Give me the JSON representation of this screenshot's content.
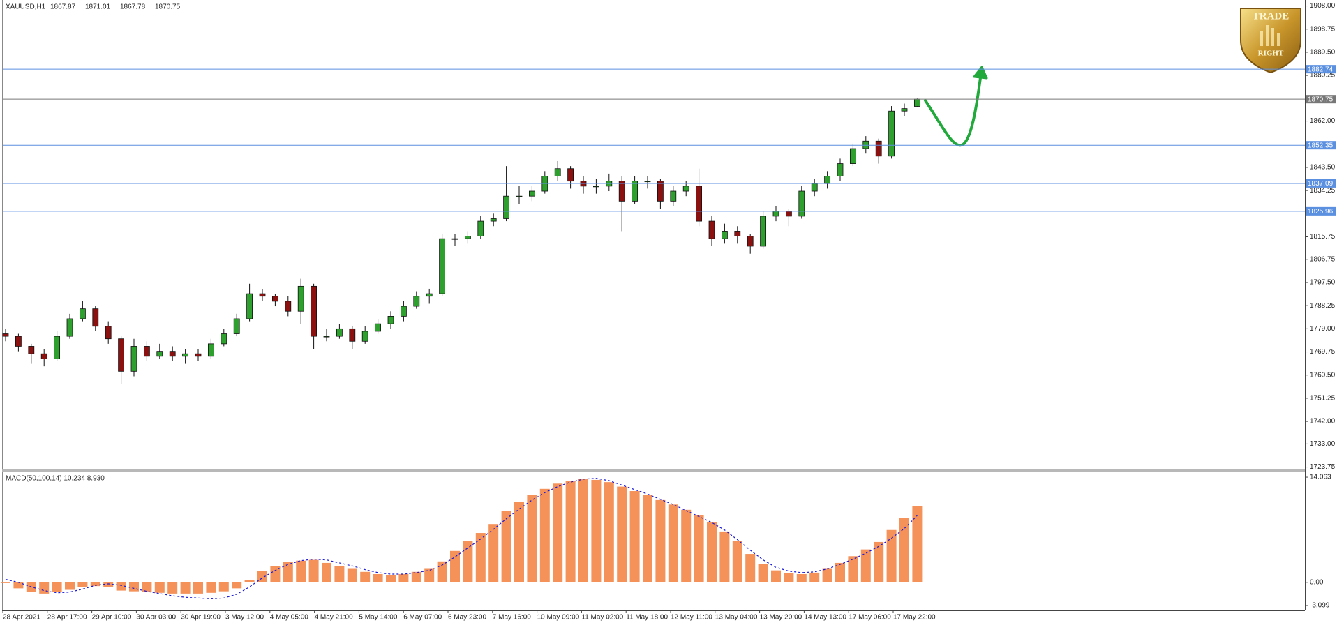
{
  "chart_data": {
    "type": "candlestick",
    "header": {
      "symbol": "XAUUSD,H1",
      "ohlc": [
        1867.87,
        1871.01,
        1867.78,
        1870.75
      ]
    },
    "ylim": [
      1723.07,
      1910.38
    ],
    "yticks": [
      {
        "value": 1908,
        "label": "1908.00"
      },
      1898.75,
      {
        "value": 1889.5,
        "label": "1889.50"
      },
      1880.25,
      {
        "value": 1862,
        "label": "1862.00"
      },
      {
        "value": 1843.5,
        "label": "1843.50"
      },
      1834.25,
      1815.75,
      1806.75,
      {
        "value": 1797.5,
        "label": "1797.50"
      },
      1788.25,
      {
        "value": 1779,
        "label": "1779.00"
      },
      1769.75,
      {
        "value": 1760.5,
        "label": "1760.50"
      },
      1751.25,
      {
        "value": 1742,
        "label": "1742.00"
      },
      {
        "value": 1733,
        "label": "1733.00"
      },
      1723.75
    ],
    "up_color": "#2ea02e",
    "down_color": "#8b1010",
    "ohlc": [
      [
        1777,
        1779,
        1774,
        1776
      ],
      [
        1776,
        1777,
        1770,
        1772
      ],
      [
        1772,
        1773,
        1765,
        1769
      ],
      [
        1769,
        1771,
        1764,
        1767
      ],
      [
        1767,
        1778,
        1766,
        1776
      ],
      [
        1776,
        1785,
        1775,
        1783
      ],
      [
        1783,
        1790,
        1782,
        1787
      ],
      [
        1787,
        1788,
        1778,
        1780
      ],
      [
        1780,
        1782,
        1773,
        1775
      ],
      [
        1775,
        1776,
        1757,
        1762
      ],
      [
        1762,
        1775,
        1760,
        1772
      ],
      [
        1772,
        1774,
        1766,
        1768
      ],
      [
        1768,
        1773,
        1767,
        1770
      ],
      [
        1770,
        1772,
        1766,
        1768
      ],
      [
        1768,
        1771,
        1765,
        1769
      ],
      [
        1769,
        1771,
        1766,
        1768
      ],
      [
        1768,
        1775,
        1767,
        1773
      ],
      [
        1773,
        1779,
        1772,
        1777
      ],
      [
        1777,
        1785,
        1776,
        1783
      ],
      [
        1783,
        1797,
        1782,
        1793
      ],
      [
        1793,
        1795,
        1790,
        1792
      ],
      [
        1792,
        1793,
        1788,
        1790
      ],
      [
        1790,
        1792,
        1784,
        1786
      ],
      [
        1786,
        1799,
        1781,
        1796
      ],
      [
        1796,
        1797,
        1771,
        1776
      ],
      [
        1776,
        1779,
        1774,
        1776
      ],
      [
        1776,
        1781,
        1775,
        1779
      ],
      [
        1779,
        1780,
        1771,
        1774
      ],
      [
        1774,
        1780,
        1773,
        1778
      ],
      [
        1778,
        1783,
        1777,
        1781
      ],
      [
        1781,
        1786,
        1779,
        1784
      ],
      [
        1784,
        1790,
        1782,
        1788
      ],
      [
        1788,
        1794,
        1787,
        1792
      ],
      [
        1792,
        1795,
        1789,
        1793
      ],
      [
        1793,
        1817,
        1792,
        1815
      ],
      [
        1815,
        1817,
        1812,
        1815
      ],
      [
        1815,
        1818,
        1813,
        1816
      ],
      [
        1816,
        1824,
        1815,
        1822
      ],
      [
        1822,
        1825,
        1820,
        1823
      ],
      [
        1823,
        1844,
        1822,
        1832
      ],
      [
        1832,
        1836,
        1829,
        1832
      ],
      [
        1832,
        1836,
        1830,
        1834
      ],
      [
        1834,
        1842,
        1833,
        1840
      ],
      [
        1840,
        1846,
        1838,
        1843
      ],
      [
        1843,
        1844,
        1835,
        1838
      ],
      [
        1838,
        1840,
        1833,
        1836
      ],
      [
        1836,
        1839,
        1833,
        1836
      ],
      [
        1836,
        1841,
        1834,
        1838
      ],
      [
        1838,
        1840,
        1818,
        1830
      ],
      [
        1830,
        1840,
        1829,
        1838
      ],
      [
        1838,
        1840,
        1835,
        1838
      ],
      [
        1838,
        1839,
        1827,
        1830
      ],
      [
        1830,
        1836,
        1828,
        1834
      ],
      [
        1834,
        1838,
        1832,
        1836
      ],
      [
        1836,
        1843,
        1820,
        1822
      ],
      [
        1822,
        1824,
        1812,
        1815
      ],
      [
        1815,
        1821,
        1813,
        1818
      ],
      [
        1818,
        1820,
        1813,
        1816
      ],
      [
        1816,
        1817,
        1809,
        1812
      ],
      [
        1812,
        1826,
        1811,
        1824
      ],
      [
        1824,
        1828,
        1822,
        1826
      ],
      [
        1826,
        1827,
        1820,
        1824
      ],
      [
        1824,
        1836,
        1823,
        1834
      ],
      [
        1834,
        1839,
        1832,
        1837
      ],
      [
        1837,
        1842,
        1835,
        1840
      ],
      [
        1840,
        1847,
        1838,
        1845
      ],
      [
        1845,
        1853,
        1844,
        1851
      ],
      [
        1851,
        1856,
        1849,
        1854
      ],
      [
        1854,
        1855,
        1845,
        1848
      ],
      [
        1848,
        1868,
        1847,
        1866
      ],
      [
        1866,
        1869,
        1864,
        1867
      ],
      [
        1867.87,
        1871.01,
        1867.78,
        1870.75
      ]
    ],
    "levels": [
      {
        "value": 1882.74,
        "color": "#5b8fe0"
      },
      {
        "value": 1870.75,
        "color": "#777777"
      },
      {
        "value": 1852.35,
        "color": "#5b8fe0"
      },
      {
        "value": 1837.09,
        "color": "#5b8fe0"
      },
      {
        "value": 1825.96,
        "color": "#5b8fe0"
      }
    ],
    "xticks": [
      "28 Apr 2021",
      "28 Apr 17:00",
      "29 Apr 10:00",
      "30 Apr 03:00",
      "30 Apr 19:00",
      "3 May 12:00",
      "4 May 05:00",
      "4 May 21:00",
      "5 May 14:00",
      "6 May 07:00",
      "6 May 23:00",
      "7 May 16:00",
      "10 May 09:00",
      "11 May 02:00",
      "11 May 18:00",
      "12 May 11:00",
      "13 May 04:00",
      "13 May 20:00",
      "14 May 13:00",
      "17 May 06:00",
      "17 May 22:00"
    ],
    "macd": {
      "title": "MACD(50,100,14) 10.234 8.930",
      "ylim": [
        -3.75,
        14.72
      ],
      "yticks": [
        14.063,
        {
          "value": 0,
          "label": "0.00"
        },
        -3.099
      ],
      "histogram": {
        "color": "#f5925a",
        "values": [
          -0.1,
          -0.8,
          -1.3,
          -1.5,
          -1.3,
          -1.0,
          -0.6,
          -0.5,
          -0.6,
          -1.1,
          -1.2,
          -1.3,
          -1.4,
          -1.5,
          -1.5,
          -1.5,
          -1.4,
          -1.2,
          -0.8,
          0.3,
          1.5,
          2.2,
          2.7,
          2.9,
          3.0,
          2.6,
          2.2,
          1.8,
          1.4,
          1.1,
          1.0,
          1.1,
          1.4,
          1.8,
          2.8,
          4.2,
          5.5,
          6.6,
          7.8,
          9.5,
          10.8,
          11.7,
          12.5,
          13.2,
          13.6,
          13.8,
          13.7,
          13.4,
          12.8,
          12.2,
          11.7,
          11.0,
          10.4,
          9.7,
          9.0,
          8.0,
          6.8,
          5.5,
          3.8,
          2.5,
          1.6,
          1.2,
          1.1,
          1.3,
          1.8,
          2.6,
          3.5,
          4.4,
          5.4,
          7.0,
          8.6,
          10.234
        ]
      },
      "signal": {
        "color": "#1a1ad6",
        "values": [
          0.4,
          0.0,
          -0.6,
          -1.1,
          -1.4,
          -1.3,
          -0.9,
          -0.4,
          -0.2,
          -0.4,
          -0.8,
          -1.2,
          -1.5,
          -1.8,
          -2.0,
          -2.1,
          -2.2,
          -2.1,
          -1.6,
          -0.6,
          0.6,
          1.6,
          2.4,
          2.9,
          3.1,
          3.0,
          2.6,
          2.2,
          1.7,
          1.3,
          1.1,
          1.1,
          1.3,
          1.6,
          2.3,
          3.4,
          4.6,
          5.8,
          7.1,
          8.5,
          9.8,
          11.0,
          12.0,
          12.8,
          13.4,
          13.8,
          13.9,
          13.6,
          13.0,
          12.4,
          11.8,
          11.1,
          10.4,
          9.6,
          8.8,
          8.0,
          7.0,
          5.7,
          4.3,
          3.0,
          2.0,
          1.5,
          1.3,
          1.4,
          1.8,
          2.4,
          3.1,
          3.9,
          4.8,
          5.9,
          7.2,
          8.93
        ]
      }
    },
    "logo": {
      "top": "TRADE",
      "bottom": "RIGHT"
    }
  }
}
